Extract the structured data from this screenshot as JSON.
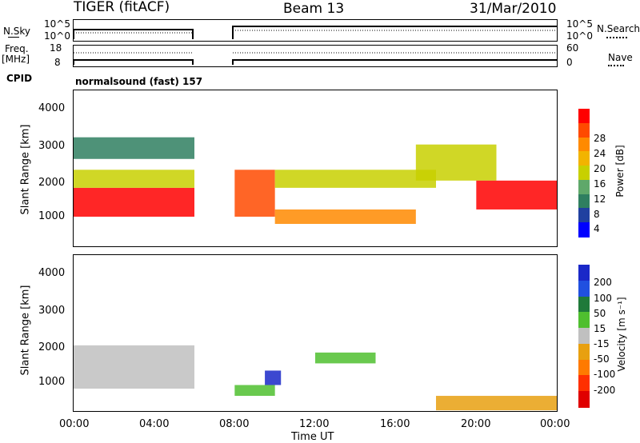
{
  "header": {
    "radar": "TIGER (fitACF)",
    "beam": "Beam 13",
    "date": "31/Mar/2010"
  },
  "nsky_panel": {
    "left_label": "N.Sky",
    "left_ticks": [
      "10^5",
      "10^0"
    ],
    "right_ticks": [
      "10^5",
      "10^0"
    ],
    "right_label": "N.Search"
  },
  "freq_panel": {
    "left_label_1": "Freq.",
    "left_label_2": "[MHz]",
    "left_ticks": [
      "18",
      "8"
    ],
    "right_ticks": [
      "60",
      "0"
    ],
    "right_label": "Nave"
  },
  "cpid": {
    "label": "CPID",
    "value": "normalsound (fast) 157"
  },
  "power_panel": {
    "ylabel": "Slant Range [km]",
    "yticks": [
      "4000",
      "3000",
      "2000",
      "1000"
    ]
  },
  "velocity_panel": {
    "ylabel": "Slant Range [km]",
    "yticks": [
      "4000",
      "3000",
      "2000",
      "1000"
    ]
  },
  "power_colorbar": {
    "label": "Power [dB]",
    "ticks": [
      "28",
      "24",
      "20",
      "16",
      "12",
      "8",
      "4"
    ],
    "colors": [
      "#ff0000",
      "#ff4a00",
      "#ff8a00",
      "#f2b400",
      "#c8d000",
      "#5fa86a",
      "#2f7f60",
      "#2040a0",
      "#0000ff"
    ]
  },
  "velocity_colorbar": {
    "label": "Velocity [m s⁻¹]",
    "ticks": [
      "200",
      "100",
      "50",
      "15",
      "-15",
      "-50",
      "-100",
      "-200"
    ],
    "colors": [
      "#1a28c8",
      "#2050e0",
      "#1f7a3a",
      "#4fbf2f",
      "#c0c0c0",
      "#e8a010",
      "#ff7a00",
      "#ff3000",
      "#e00000"
    ]
  },
  "time_axis": {
    "ticks": [
      "00:00",
      "04:00",
      "08:00",
      "12:00",
      "16:00",
      "20:00",
      "00:00"
    ],
    "label": "Time UT"
  },
  "chart_data": {
    "type": "heatmap",
    "x_range_hours": [
      0,
      24
    ],
    "y_range_km": [
      180,
      4500
    ],
    "data_gap_hours": [
      6,
      8
    ],
    "power_db_range": [
      0,
      30
    ],
    "velocity_range": [
      -250,
      250
    ],
    "power_regions": [
      {
        "t0": 0.0,
        "t1": 6.0,
        "r0": 1000,
        "r1": 1800,
        "power": 28
      },
      {
        "t0": 0.0,
        "t1": 6.0,
        "r0": 1800,
        "r1": 2300,
        "power": 16
      },
      {
        "t0": 0.0,
        "t1": 6.0,
        "r0": 2600,
        "r1": 3200,
        "power": 8
      },
      {
        "t0": 8.0,
        "t1": 10.0,
        "r0": 1000,
        "r1": 2300,
        "power": 26
      },
      {
        "t0": 10.0,
        "t1": 17.0,
        "r0": 800,
        "r1": 1200,
        "power": 20
      },
      {
        "t0": 10.0,
        "t1": 18.0,
        "r0": 1800,
        "r1": 2300,
        "power": 16
      },
      {
        "t0": 17.0,
        "t1": 21.0,
        "r0": 2000,
        "r1": 3000,
        "power": 16
      },
      {
        "t0": 20.0,
        "t1": 24.0,
        "r0": 1200,
        "r1": 2000,
        "power": 27
      }
    ],
    "velocity_regions": [
      {
        "t0": 0.0,
        "t1": 6.0,
        "r0": 800,
        "r1": 2000,
        "velocity": 0
      },
      {
        "t0": 8.0,
        "t1": 10.0,
        "r0": 600,
        "r1": 900,
        "velocity": 40
      },
      {
        "t0": 9.5,
        "t1": 10.3,
        "r0": 900,
        "r1": 1300,
        "velocity": 200
      },
      {
        "t0": 12.0,
        "t1": 15.0,
        "r0": 1500,
        "r1": 1800,
        "velocity": 60
      },
      {
        "t0": 18.0,
        "t1": 24.0,
        "r0": 200,
        "r1": 600,
        "velocity": -40
      }
    ]
  }
}
